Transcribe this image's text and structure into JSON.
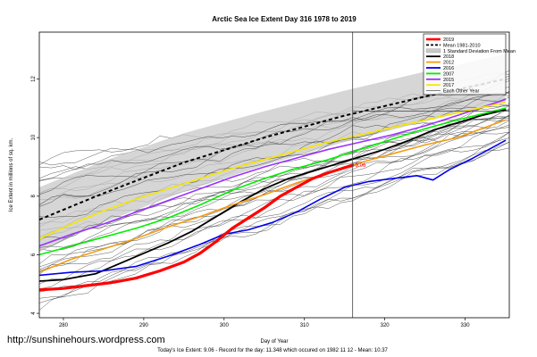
{
  "chart_data": {
    "type": "line",
    "title": "Arctic Sea Ice Extent Day 316 1978 to 2019",
    "xlabel": "Day of Year",
    "ylabel": "Ice Extent in millions of sq. km.",
    "xlim": [
      277,
      335.5
    ],
    "ylim": [
      3.85,
      13.6
    ],
    "x_ticks": [
      280,
      290,
      300,
      310,
      320,
      330
    ],
    "y_ticks": [
      4,
      6,
      8,
      10,
      12
    ],
    "marker_day": 316,
    "reference_value": 10.9,
    "annotation": {
      "x": 316,
      "y": 9.06,
      "text": "9.06"
    },
    "legend_position": "top-right",
    "legend": [
      {
        "label": "2019",
        "color": "#ff0000",
        "style": "solid"
      },
      {
        "label": "Mean 1981-2010",
        "color": "#000000",
        "style": "dashed"
      },
      {
        "label": "1 Standard Deviation From Mean",
        "color": "#c8c8c8",
        "style": "band"
      },
      {
        "label": "2018",
        "color": "#000000",
        "style": "solid"
      },
      {
        "label": "2012",
        "color": "#f39c12",
        "style": "solid"
      },
      {
        "label": "2016",
        "color": "#0000ee",
        "style": "solid"
      },
      {
        "label": "2007",
        "color": "#00ee00",
        "style": "solid"
      },
      {
        "label": "2015",
        "color": "#9b30ff",
        "style": "solid"
      },
      {
        "label": "2017",
        "color": "#f7e600",
        "style": "solid"
      },
      {
        "label": "Each Other Year",
        "color": "#333333",
        "style": "thin"
      }
    ],
    "band": {
      "x": [
        277,
        285,
        295,
        305,
        315,
        325,
        335
      ],
      "lower": [
        6.1,
        7.1,
        8.15,
        9.05,
        9.85,
        10.55,
        11.2
      ],
      "upper": [
        8.3,
        9.2,
        10.15,
        10.9,
        11.6,
        12.25,
        12.85
      ]
    },
    "mean": {
      "x": [
        277,
        285,
        295,
        305,
        315,
        325,
        335
      ],
      "values": [
        7.2,
        8.1,
        9.15,
        10.0,
        10.75,
        11.4,
        12.0
      ]
    },
    "series": [
      {
        "name": "2019",
        "color": "#ff0000",
        "width": 3.2,
        "x": [
          277,
          280,
          283,
          286,
          289,
          292,
          295,
          297,
          299,
          301,
          303,
          305,
          307,
          309,
          311,
          313,
          316
        ],
        "values": [
          4.8,
          4.85,
          4.95,
          5.05,
          5.2,
          5.45,
          5.75,
          6.05,
          6.45,
          6.9,
          7.25,
          7.6,
          8.0,
          8.3,
          8.6,
          8.8,
          9.06
        ]
      },
      {
        "name": "2018",
        "color": "#000000",
        "width": 1.8,
        "x": [
          277,
          280,
          284,
          287,
          290,
          293,
          296,
          299,
          302,
          305,
          308,
          311,
          314,
          317,
          320,
          323,
          326,
          329,
          332,
          335
        ],
        "values": [
          5.1,
          5.15,
          5.35,
          5.7,
          6.05,
          6.4,
          6.8,
          7.3,
          7.8,
          8.25,
          8.6,
          8.85,
          9.1,
          9.35,
          9.6,
          9.9,
          10.25,
          10.5,
          10.75,
          10.95
        ]
      },
      {
        "name": "2012",
        "color": "#f39c12",
        "width": 1.6,
        "x": [
          277,
          281,
          285,
          289,
          293,
          297,
          301,
          305,
          309,
          313,
          317,
          321,
          325,
          329,
          335
        ],
        "values": [
          5.4,
          5.85,
          6.2,
          6.55,
          6.95,
          7.3,
          7.7,
          8.05,
          8.45,
          8.8,
          9.15,
          9.45,
          9.75,
          10.0,
          10.6
        ]
      },
      {
        "name": "2016",
        "color": "#0000ee",
        "width": 1.6,
        "x": [
          277,
          281,
          285,
          289,
          293,
          297,
          300,
          303,
          306,
          309,
          312,
          315,
          318,
          321,
          324,
          326,
          328,
          331,
          335
        ],
        "values": [
          5.3,
          5.4,
          5.45,
          5.6,
          5.95,
          6.35,
          6.7,
          6.85,
          7.1,
          7.45,
          7.9,
          8.3,
          8.5,
          8.6,
          8.7,
          8.55,
          8.9,
          9.3,
          9.9
        ]
      },
      {
        "name": "2007",
        "color": "#00ee00",
        "width": 1.6,
        "x": [
          277,
          281,
          285,
          289,
          293,
          297,
          301,
          305,
          309,
          313,
          317,
          321,
          325,
          329,
          335
        ],
        "values": [
          6.0,
          6.3,
          6.6,
          6.9,
          7.25,
          7.7,
          8.2,
          8.6,
          8.95,
          9.25,
          9.6,
          9.95,
          10.3,
          10.6,
          11.0
        ]
      },
      {
        "name": "2015",
        "color": "#9b30ff",
        "width": 1.6,
        "x": [
          277,
          281,
          285,
          289,
          293,
          297,
          301,
          305,
          309,
          313,
          317,
          321,
          325,
          329,
          335
        ],
        "values": [
          6.3,
          6.7,
          7.05,
          7.45,
          7.85,
          8.25,
          8.65,
          9.0,
          9.3,
          9.6,
          9.85,
          10.1,
          10.4,
          10.75,
          11.3
        ]
      },
      {
        "name": "2017",
        "color": "#f7e600",
        "width": 1.6,
        "x": [
          277,
          281,
          285,
          289,
          293,
          297,
          301,
          305,
          309,
          313,
          317,
          321,
          325,
          329,
          335
        ],
        "values": [
          6.55,
          7.05,
          7.5,
          7.9,
          8.25,
          8.6,
          8.95,
          9.25,
          9.55,
          9.85,
          10.1,
          10.35,
          10.6,
          10.85,
          11.2
        ]
      }
    ]
  },
  "footer": {
    "line": "Today's Ice Extent: 9.06  - Record for the day: 11.348 which occured on 1982 11 12  - Mean: 10.37"
  },
  "watermark": "http://sunshinehours.wordpress.com"
}
